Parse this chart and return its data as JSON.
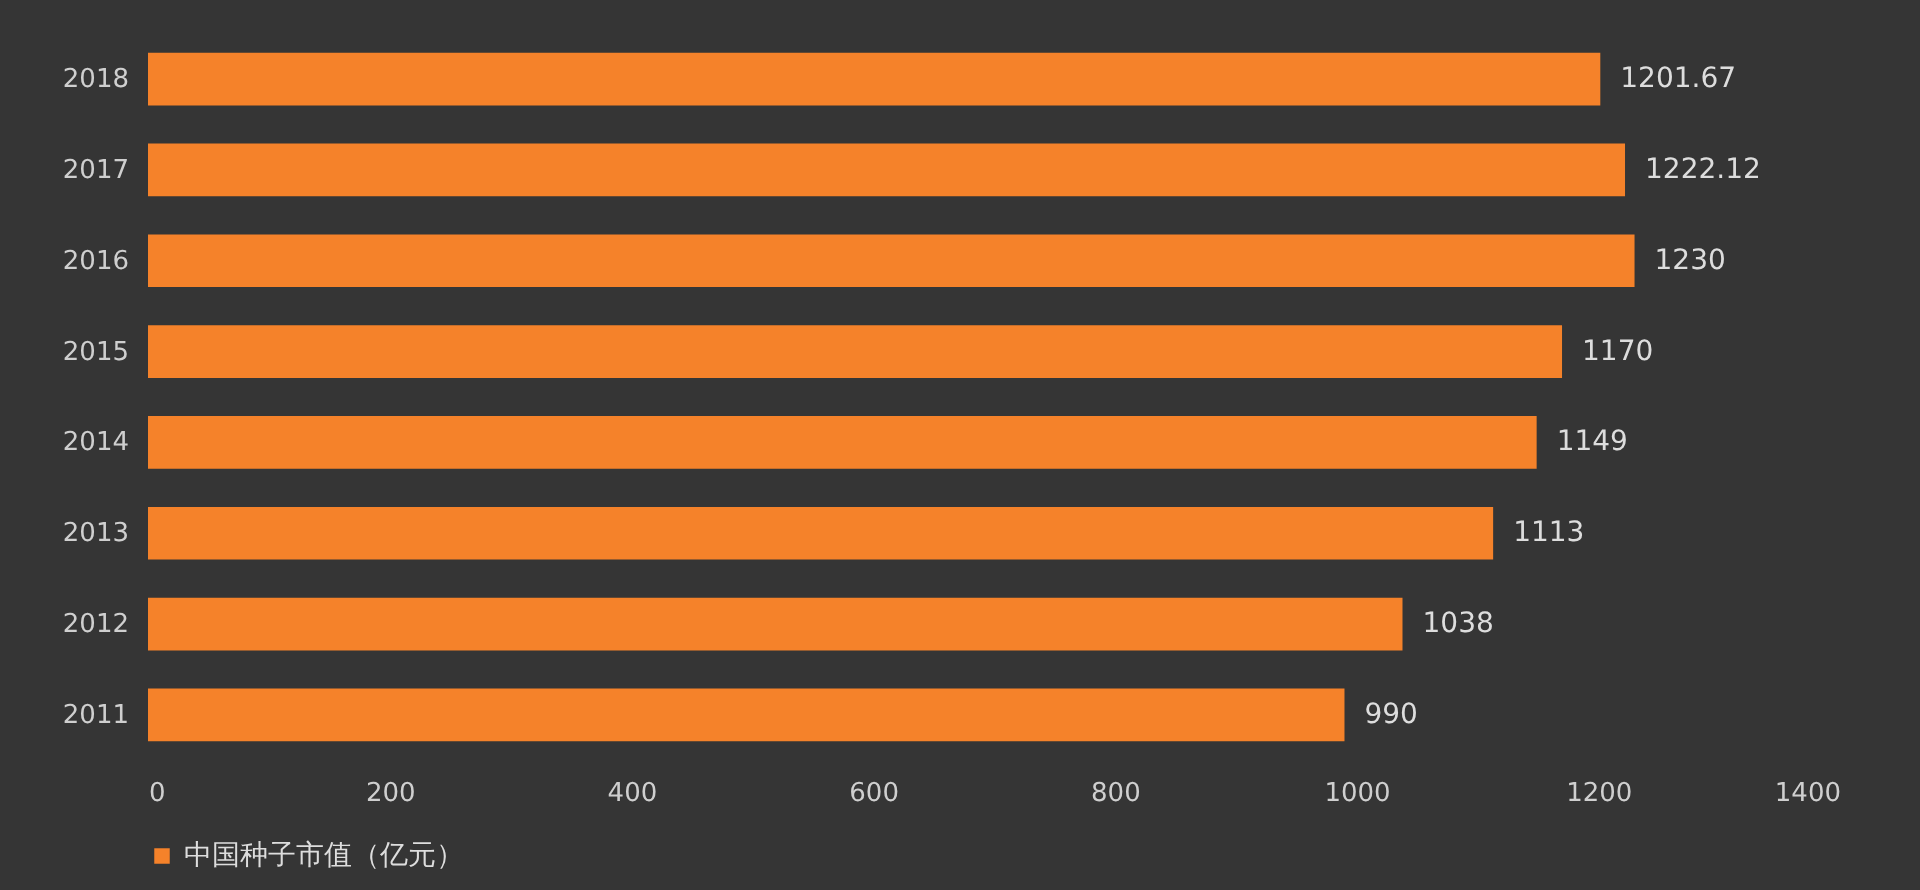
{
  "chart_data": {
    "type": "bar",
    "orientation": "horizontal",
    "categories": [
      "2018",
      "2017",
      "2016",
      "2015",
      "2014",
      "2013",
      "2012",
      "2011"
    ],
    "series": [
      {
        "name": "中国种子市值（亿元）",
        "color": "#f5822a",
        "values": [
          1201.67,
          1222.12,
          1230,
          1170,
          1149,
          1113,
          1038,
          990
        ]
      }
    ],
    "xlim": [
      0,
      1400
    ],
    "xticks": [
      0,
      200,
      400,
      600,
      800,
      1000,
      1200,
      1400
    ],
    "data_labels": true,
    "legend": "bottom",
    "grid": false
  }
}
